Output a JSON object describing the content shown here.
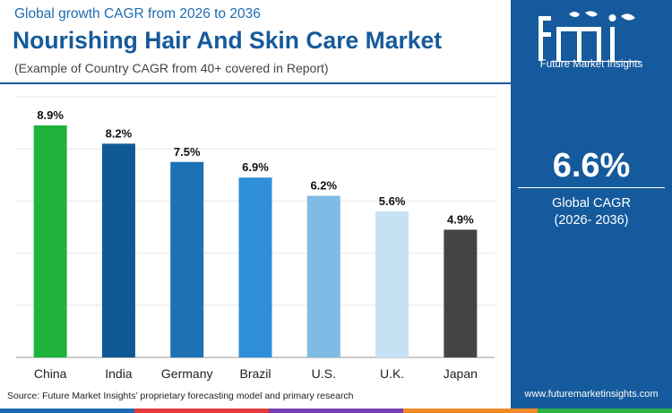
{
  "header": {
    "subtitle": "Global growth CAGR from 2026 to 2036",
    "title": "Nourishing Hair And Skin Care Market",
    "note": "(Example of Country CAGR from 40+ covered in Report)"
  },
  "sidebar": {
    "logo_text": "fmi",
    "logo_subtitle": "Future Market Insights",
    "cagr_value": "6.6%",
    "cagr_label": "Global CAGR",
    "cagr_period": "(2026- 2036)",
    "website": "www.futuremarketinsights.com"
  },
  "source": "Source: Future Market Insights’ proprietary forecasting model and primary research",
  "colors": {
    "brand_blue": "#155a9c",
    "bottom_bar": [
      "#1f6bb0",
      "#e23b3b",
      "#7a3fb0",
      "#f08a24",
      "#2bb34a"
    ]
  },
  "chart_data": {
    "type": "bar",
    "categories": [
      "China",
      "India",
      "Germany",
      "Brazil",
      "U.S.",
      "U.K.",
      "Japan"
    ],
    "values": [
      8.9,
      8.2,
      7.5,
      6.9,
      6.2,
      5.6,
      4.9
    ],
    "data_labels": [
      "8.9%",
      "8.2%",
      "7.5%",
      "6.9%",
      "6.2%",
      "5.6%",
      "4.9%"
    ],
    "colors": [
      "#1fb33d",
      "#0f5a96",
      "#1c72b5",
      "#2f8fd8",
      "#7fbbe5",
      "#c5e2f5",
      "#444444"
    ],
    "ylim": [
      0,
      10
    ],
    "grid": true,
    "title": "",
    "xlabel": "",
    "ylabel": ""
  }
}
